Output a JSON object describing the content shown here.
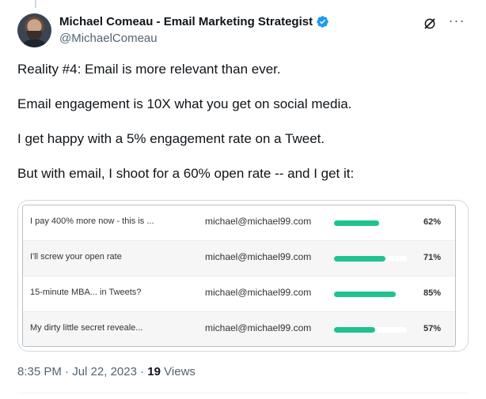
{
  "author": {
    "display_name": "Michael Comeau - Email Marketing Strategist",
    "handle": "@MichaelComeau",
    "verified": true,
    "verified_color": "#1d9bf0"
  },
  "icons": {
    "avatar": "avatar-photo",
    "verified": "verified-badge-icon",
    "grok": "grok-icon",
    "more": "more-icon"
  },
  "tweet": {
    "paragraphs": [
      "Reality #4: Email is more relevant than ever.",
      "Email engagement is 10X what you get on social media.",
      "I get happy with a 5% engagement rate on a Tweet.",
      "But with email, I shoot for a 60% open rate -- and I get it:"
    ]
  },
  "media": {
    "accent_color": "#1fc38f",
    "rows": [
      {
        "subject": "I pay 400% more now - this is ...",
        "sender": "michael@michael99.com",
        "open_rate": 62,
        "open_rate_label": "62%"
      },
      {
        "subject": "I'll screw your open rate",
        "sender": "michael@michael99.com",
        "open_rate": 71,
        "open_rate_label": "71%"
      },
      {
        "subject": "15-minute MBA... in Tweets?",
        "sender": "michael@michael99.com",
        "open_rate": 85,
        "open_rate_label": "85%"
      },
      {
        "subject": "My dirty little secret reveale...",
        "sender": "michael@michael99.com",
        "open_rate": 57,
        "open_rate_label": "57%"
      }
    ]
  },
  "meta": {
    "time": "8:35 PM",
    "date": "Jul 22, 2023",
    "separator": "·",
    "views_count": "19",
    "views_label": "Views"
  }
}
